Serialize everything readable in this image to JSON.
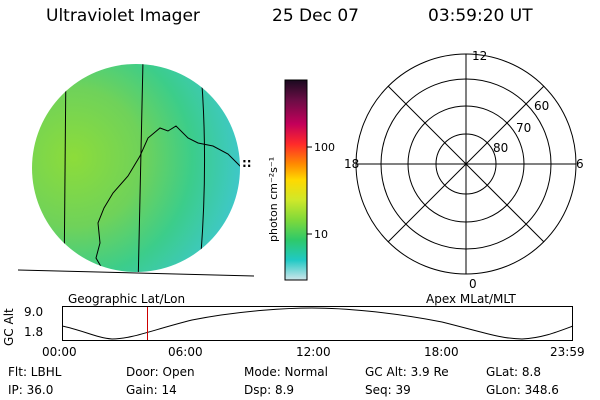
{
  "header": {
    "instrument": "Ultraviolet Imager",
    "date": "25 Dec 07",
    "time": "03:59:20 UT"
  },
  "colorbar": {
    "unit_label": "photon cm⁻²s⁻¹",
    "tick_labels": [
      "100",
      "10"
    ],
    "colors": [
      "#1a0a1f",
      "#6a0d45",
      "#c4005a",
      "#ff2a2a",
      "#ff8a00",
      "#ffd900",
      "#cfe82a",
      "#7fd93a",
      "#2ec96a",
      "#20c9c4",
      "#cfe5ea"
    ]
  },
  "polar_plot": {
    "mlt_labels": [
      "12",
      "18",
      "6",
      "0"
    ],
    "lat_labels": [
      "60",
      "70",
      "80"
    ]
  },
  "image_labels": {
    "left": "Geographic Lat/Lon",
    "right": "Apex MLat/MLT"
  },
  "altitude_plot": {
    "axis_label": "GC Alt",
    "y_ticks": [
      "9.0",
      "1.8"
    ],
    "x_ticks": [
      "00:00",
      "06:00",
      "12:00",
      "18:00",
      "23:59"
    ],
    "current_time_fraction": 0.166
  },
  "info": {
    "row1": {
      "flt": "Flt: LBHL",
      "door": "Door: Open",
      "mode": "Mode: Normal",
      "gcalt": "GC Alt: 3.9 Re",
      "glat": "GLat:    8.8"
    },
    "row2": {
      "ip": "IP: 36.0",
      "gain": "Gain: 14",
      "dsp": "Dsp:     8.9",
      "seq": "Seq: 39",
      "glon": "GLon: 348.6"
    }
  },
  "side_marks": "::"
}
